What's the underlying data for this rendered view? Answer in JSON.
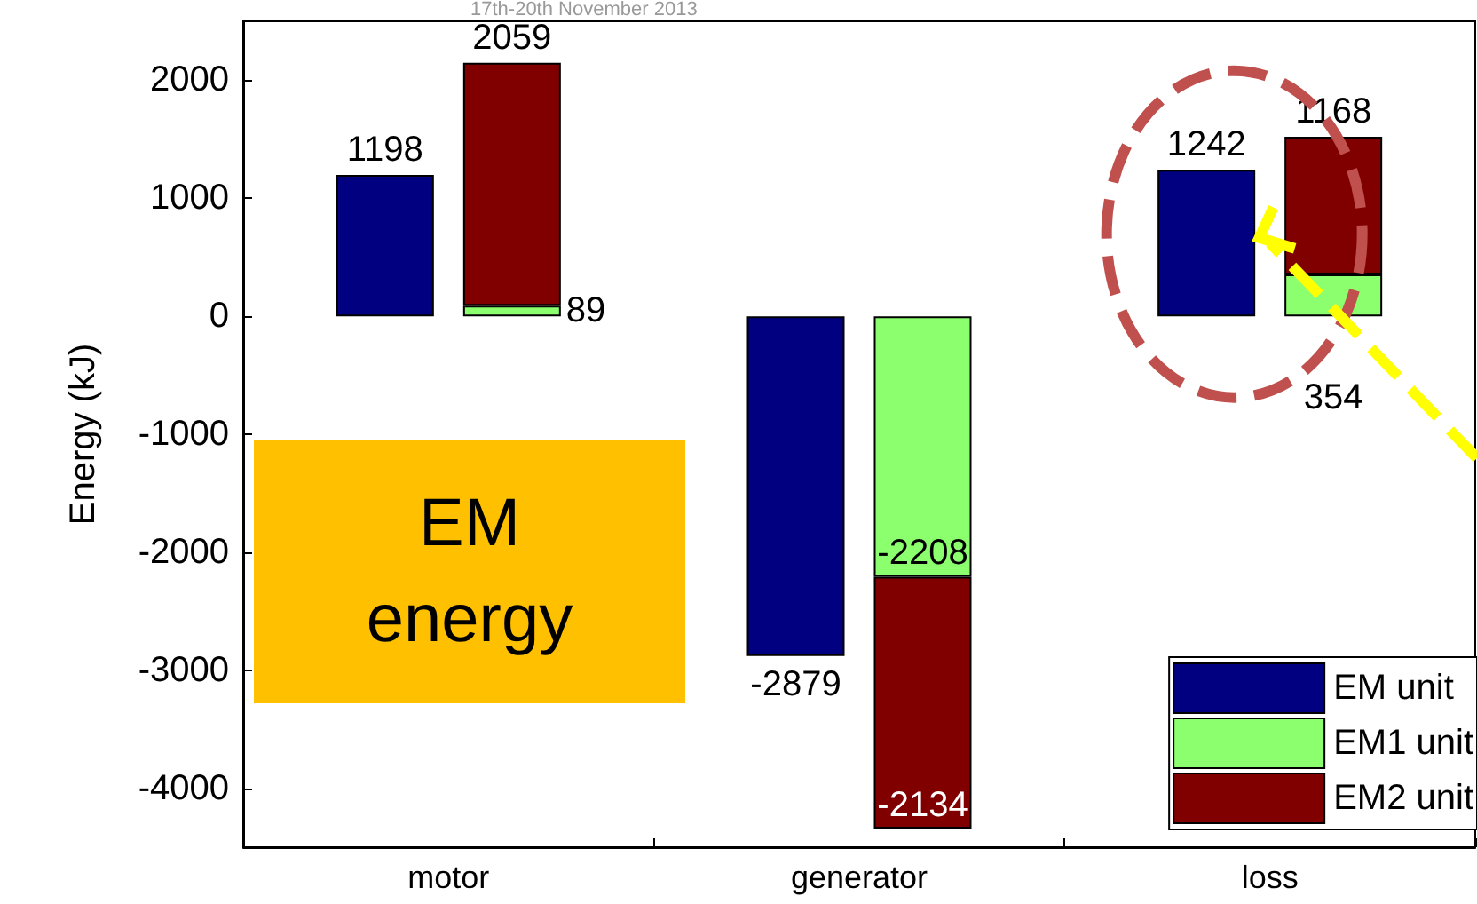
{
  "chart_data": {
    "type": "bar",
    "ylabel": "Energy (kJ)",
    "categories": [
      "motor",
      "generator",
      "loss"
    ],
    "series": [
      {
        "name": "EM unit",
        "color": "#000080",
        "values": [
          1198,
          -2879,
          1242
        ]
      },
      {
        "name": "EM1 unit",
        "color": "#8cff6e",
        "values": [
          89,
          -2208,
          354
        ],
        "base": [
          0,
          0,
          0
        ]
      },
      {
        "name": "EM2 unit",
        "color": "#800000",
        "values": [
          2059,
          -2134,
          1168
        ],
        "base": [
          89,
          -2208,
          354
        ]
      }
    ],
    "data_labels": true,
    "ylim": [
      -4500,
      2500
    ],
    "yticks": [
      -4000,
      -3000,
      -2000,
      -1000,
      0,
      1000,
      2000
    ],
    "legend": "bottom right",
    "annotations": [
      "17th-20th November 2013",
      "EM energy"
    ]
  }
}
